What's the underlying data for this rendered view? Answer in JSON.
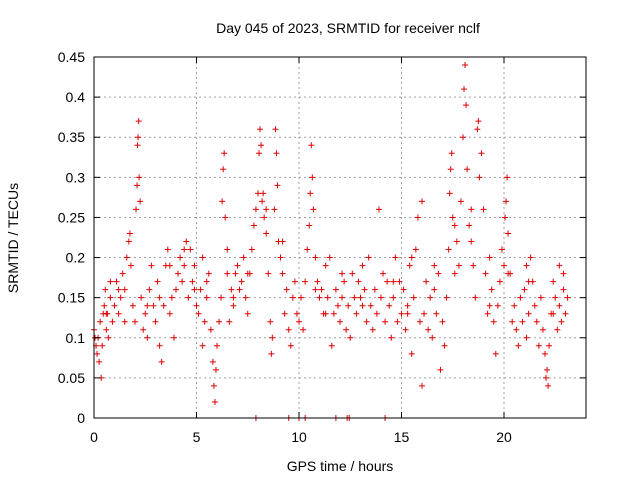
{
  "chart_data": {
    "type": "scatter",
    "title": "Day 045 of 2023, SRMTID for receiver nclf",
    "xlabel": "GPS time / hours",
    "ylabel": "SRMTID / TECUs",
    "xlim": [
      0,
      24
    ],
    "ylim": [
      0,
      0.45
    ],
    "xticks": [
      0,
      5,
      10,
      15,
      20
    ],
    "xtick_labels": [
      "0",
      "5",
      "10",
      "15",
      "20"
    ],
    "yticks": [
      0,
      0.05,
      0.1,
      0.15,
      0.2,
      0.25,
      0.3,
      0.35,
      0.4,
      0.45
    ],
    "ytick_labels": [
      "0",
      "0.05",
      "0.1",
      "0.15",
      "0.2",
      "0.25",
      "0.3",
      "0.35",
      "0.4",
      "0.45"
    ],
    "grid": true,
    "marker": "+",
    "series_color": "#e00000",
    "series": [
      {
        "name": "SRMTID",
        "points": [
          [
            0.0,
            0.11
          ],
          [
            0.05,
            0.1
          ],
          [
            0.1,
            0.09
          ],
          [
            0.15,
            0.08
          ],
          [
            0.2,
            0.1
          ],
          [
            0.25,
            0.07
          ],
          [
            0.3,
            0.12
          ],
          [
            0.35,
            0.05
          ],
          [
            0.4,
            0.09
          ],
          [
            0.45,
            0.13
          ],
          [
            0.5,
            0.14
          ],
          [
            0.55,
            0.16
          ],
          [
            0.6,
            0.11
          ],
          [
            0.65,
            0.13
          ],
          [
            0.7,
            0.1
          ],
          [
            0.8,
            0.15
          ],
          [
            0.9,
            0.12
          ],
          [
            1.0,
            0.14
          ],
          [
            1.1,
            0.17
          ],
          [
            1.2,
            0.13
          ],
          [
            1.3,
            0.15
          ],
          [
            1.4,
            0.18
          ],
          [
            1.5,
            0.16
          ],
          [
            1.6,
            0.2
          ],
          [
            1.7,
            0.22
          ],
          [
            1.75,
            0.23
          ],
          [
            1.8,
            0.19
          ],
          [
            1.9,
            0.14
          ],
          [
            2.0,
            0.12
          ],
          [
            2.05,
            0.26
          ],
          [
            2.1,
            0.29
          ],
          [
            2.12,
            0.34
          ],
          [
            2.15,
            0.35
          ],
          [
            2.18,
            0.37
          ],
          [
            2.2,
            0.3
          ],
          [
            2.25,
            0.27
          ],
          [
            2.3,
            0.15
          ],
          [
            2.4,
            0.11
          ],
          [
            2.5,
            0.13
          ],
          [
            2.6,
            0.1
          ],
          [
            2.7,
            0.16
          ],
          [
            2.8,
            0.19
          ],
          [
            2.9,
            0.14
          ],
          [
            3.0,
            0.12
          ],
          [
            3.1,
            0.17
          ],
          [
            3.2,
            0.09
          ],
          [
            3.3,
            0.07
          ],
          [
            3.4,
            0.14
          ],
          [
            3.5,
            0.19
          ],
          [
            3.6,
            0.21
          ],
          [
            3.7,
            0.13
          ],
          [
            3.8,
            0.15
          ],
          [
            3.9,
            0.1
          ],
          [
            4.0,
            0.16
          ],
          [
            4.1,
            0.18
          ],
          [
            4.2,
            0.2
          ],
          [
            4.3,
            0.17
          ],
          [
            4.4,
            0.19
          ],
          [
            4.5,
            0.22
          ],
          [
            4.6,
            0.15
          ],
          [
            4.7,
            0.21
          ],
          [
            4.8,
            0.17
          ],
          [
            4.9,
            0.19
          ],
          [
            5.0,
            0.14
          ],
          [
            5.1,
            0.13
          ],
          [
            5.2,
            0.16
          ],
          [
            5.3,
            0.2
          ],
          [
            5.4,
            0.12
          ],
          [
            5.5,
            0.15
          ],
          [
            5.6,
            0.18
          ],
          [
            5.7,
            0.11
          ],
          [
            5.8,
            0.07
          ],
          [
            5.85,
            0.04
          ],
          [
            5.9,
            0.02
          ],
          [
            5.95,
            0.06
          ],
          [
            6.0,
            0.09
          ],
          [
            6.1,
            0.12
          ],
          [
            6.2,
            0.15
          ],
          [
            6.25,
            0.27
          ],
          [
            6.3,
            0.31
          ],
          [
            6.35,
            0.33
          ],
          [
            6.4,
            0.25
          ],
          [
            6.5,
            0.18
          ],
          [
            6.6,
            0.12
          ],
          [
            6.7,
            0.16
          ],
          [
            6.8,
            0.14
          ],
          [
            6.9,
            0.18
          ],
          [
            7.0,
            0.19
          ],
          [
            7.1,
            0.16
          ],
          [
            7.2,
            0.17
          ],
          [
            7.3,
            0.2
          ],
          [
            7.4,
            0.15
          ],
          [
            7.5,
            0.13
          ],
          [
            7.6,
            0.18
          ],
          [
            7.7,
            0.21
          ],
          [
            7.8,
            0.24
          ],
          [
            7.9,
            0.26
          ],
          [
            8.0,
            0.28
          ],
          [
            8.05,
            0.33
          ],
          [
            8.1,
            0.36
          ],
          [
            8.15,
            0.34
          ],
          [
            8.2,
            0.27
          ],
          [
            8.3,
            0.25
          ],
          [
            8.4,
            0.23
          ],
          [
            8.5,
            0.18
          ],
          [
            8.6,
            0.12
          ],
          [
            8.65,
            0.08
          ],
          [
            8.7,
            0.1
          ],
          [
            8.8,
            0.26
          ],
          [
            8.85,
            0.36
          ],
          [
            8.9,
            0.33
          ],
          [
            8.95,
            0.29
          ],
          [
            9.0,
            0.22
          ],
          [
            9.1,
            0.2
          ],
          [
            9.2,
            0.18
          ],
          [
            9.3,
            0.13
          ],
          [
            9.4,
            0.16
          ],
          [
            9.5,
            0.11
          ],
          [
            9.6,
            0.09
          ],
          [
            9.7,
            0.15
          ],
          [
            9.8,
            0.17
          ],
          [
            9.9,
            0.13
          ],
          [
            10.0,
            0.12
          ],
          [
            10.1,
            0.15
          ],
          [
            10.2,
            0.11
          ],
          [
            10.3,
            0.17
          ],
          [
            10.4,
            0.21
          ],
          [
            10.5,
            0.24
          ],
          [
            10.55,
            0.28
          ],
          [
            10.6,
            0.34
          ],
          [
            10.65,
            0.3
          ],
          [
            10.7,
            0.26
          ],
          [
            10.8,
            0.2
          ],
          [
            10.9,
            0.17
          ],
          [
            11.0,
            0.15
          ],
          [
            11.1,
            0.16
          ],
          [
            11.2,
            0.13
          ],
          [
            11.3,
            0.19
          ],
          [
            11.4,
            0.15
          ],
          [
            11.5,
            0.2
          ],
          [
            11.6,
            0.09
          ],
          [
            11.7,
            0.13
          ],
          [
            11.8,
            0.16
          ],
          [
            11.9,
            0.14
          ],
          [
            12.0,
            0.12
          ],
          [
            12.1,
            0.15
          ],
          [
            12.2,
            0.17
          ],
          [
            12.3,
            0.11
          ],
          [
            12.4,
            0.14
          ],
          [
            12.5,
            0.1
          ],
          [
            12.6,
            0.18
          ],
          [
            12.7,
            0.15
          ],
          [
            12.8,
            0.13
          ],
          [
            12.9,
            0.17
          ],
          [
            13.0,
            0.15
          ],
          [
            13.1,
            0.19
          ],
          [
            13.2,
            0.16
          ],
          [
            13.3,
            0.12
          ],
          [
            13.4,
            0.2
          ],
          [
            13.5,
            0.14
          ],
          [
            13.6,
            0.11
          ],
          [
            13.7,
            0.16
          ],
          [
            13.8,
            0.13
          ],
          [
            13.9,
            0.26
          ],
          [
            14.0,
            0.15
          ],
          [
            14.1,
            0.18
          ],
          [
            14.2,
            0.12
          ],
          [
            14.3,
            0.17
          ],
          [
            14.4,
            0.14
          ],
          [
            14.5,
            0.1
          ],
          [
            14.6,
            0.15
          ],
          [
            14.7,
            0.2
          ],
          [
            14.8,
            0.12
          ],
          [
            14.9,
            0.17
          ],
          [
            15.0,
            0.13
          ],
          [
            15.1,
            0.16
          ],
          [
            15.2,
            0.11
          ],
          [
            15.3,
            0.14
          ],
          [
            15.4,
            0.19
          ],
          [
            15.5,
            0.08
          ],
          [
            15.6,
            0.15
          ],
          [
            15.7,
            0.21
          ],
          [
            15.8,
            0.25
          ],
          [
            15.9,
            0.12
          ],
          [
            16.0,
            0.04
          ],
          [
            16.1,
            0.13
          ],
          [
            16.2,
            0.17
          ],
          [
            16.3,
            0.11
          ],
          [
            16.4,
            0.15
          ],
          [
            16.5,
            0.1
          ],
          [
            16.6,
            0.16
          ],
          [
            16.7,
            0.13
          ],
          [
            16.8,
            0.18
          ],
          [
            16.9,
            0.06
          ],
          [
            17.0,
            0.12
          ],
          [
            17.1,
            0.09
          ],
          [
            17.2,
            0.15
          ],
          [
            17.3,
            0.21
          ],
          [
            17.35,
            0.28
          ],
          [
            17.4,
            0.31
          ],
          [
            17.45,
            0.33
          ],
          [
            17.5,
            0.25
          ],
          [
            17.6,
            0.18
          ],
          [
            17.7,
            0.22
          ],
          [
            17.8,
            0.19
          ],
          [
            17.9,
            0.27
          ],
          [
            18.0,
            0.35
          ],
          [
            18.05,
            0.41
          ],
          [
            18.1,
            0.44
          ],
          [
            18.15,
            0.39
          ],
          [
            18.2,
            0.31
          ],
          [
            18.3,
            0.24
          ],
          [
            18.4,
            0.22
          ],
          [
            18.5,
            0.19
          ],
          [
            18.6,
            0.15
          ],
          [
            18.7,
            0.36
          ],
          [
            18.75,
            0.37
          ],
          [
            18.8,
            0.3
          ],
          [
            18.9,
            0.33
          ],
          [
            19.0,
            0.26
          ],
          [
            19.1,
            0.18
          ],
          [
            19.2,
            0.13
          ],
          [
            19.3,
            0.2
          ],
          [
            19.4,
            0.16
          ],
          [
            19.5,
            0.12
          ],
          [
            19.6,
            0.08
          ],
          [
            19.7,
            0.14
          ],
          [
            19.8,
            0.17
          ],
          [
            19.9,
            0.21
          ],
          [
            20.0,
            0.19
          ],
          [
            20.05,
            0.25
          ],
          [
            20.1,
            0.27
          ],
          [
            20.15,
            0.3
          ],
          [
            20.2,
            0.23
          ],
          [
            20.3,
            0.18
          ],
          [
            20.4,
            0.12
          ],
          [
            20.5,
            0.14
          ],
          [
            20.6,
            0.11
          ],
          [
            20.7,
            0.09
          ],
          [
            20.8,
            0.15
          ],
          [
            20.9,
            0.12
          ],
          [
            21.0,
            0.16
          ],
          [
            21.1,
            0.1
          ],
          [
            21.2,
            0.13
          ],
          [
            21.3,
            0.2
          ],
          [
            21.4,
            0.17
          ],
          [
            21.5,
            0.14
          ],
          [
            21.6,
            0.12
          ],
          [
            21.7,
            0.09
          ],
          [
            21.8,
            0.15
          ],
          [
            21.9,
            0.11
          ],
          [
            22.0,
            0.08
          ],
          [
            22.05,
            0.05
          ],
          [
            22.1,
            0.06
          ],
          [
            22.15,
            0.04
          ],
          [
            22.2,
            0.09
          ],
          [
            22.3,
            0.13
          ],
          [
            22.4,
            0.17
          ],
          [
            22.5,
            0.15
          ],
          [
            22.6,
            0.11
          ],
          [
            22.7,
            0.14
          ],
          [
            22.8,
            0.12
          ],
          [
            22.9,
            0.16
          ],
          [
            23.0,
            0.13
          ],
          [
            23.1,
            0.15
          ],
          [
            22.7,
            0.19
          ],
          [
            22.9,
            0.18
          ],
          [
            21.2,
            0.17
          ],
          [
            16.0,
            0.27
          ],
          [
            15.5,
            0.2
          ],
          [
            7.9,
            0.0
          ],
          [
            9.5,
            0.0
          ],
          [
            10.0,
            0.0
          ],
          [
            10.3,
            0.0
          ],
          [
            11.8,
            0.0
          ],
          [
            12.35,
            0.0
          ],
          [
            12.45,
            0.0
          ],
          [
            14.2,
            0.0
          ],
          [
            0.6,
            0.13
          ],
          [
            1.2,
            0.16
          ],
          [
            2.6,
            0.14
          ],
          [
            3.7,
            0.19
          ],
          [
            4.4,
            0.21
          ],
          [
            4.9,
            0.16
          ],
          [
            5.5,
            0.17
          ],
          [
            6.8,
            0.15
          ],
          [
            7.5,
            0.18
          ],
          [
            8.25,
            0.28
          ],
          [
            8.4,
            0.26
          ],
          [
            9.2,
            0.22
          ],
          [
            10.8,
            0.16
          ],
          [
            11.3,
            0.13
          ],
          [
            12.1,
            0.18
          ],
          [
            13.1,
            0.14
          ],
          [
            14.6,
            0.17
          ],
          [
            15.3,
            0.13
          ],
          [
            16.6,
            0.19
          ],
          [
            17.6,
            0.24
          ],
          [
            18.4,
            0.26
          ],
          [
            19.3,
            0.14
          ],
          [
            20.2,
            0.18
          ],
          [
            21.1,
            0.19
          ],
          [
            22.4,
            0.13
          ],
          [
            6.5,
            0.21
          ],
          [
            5.3,
            0.09
          ],
          [
            3.2,
            0.15
          ],
          [
            1.5,
            0.12
          ],
          [
            0.8,
            0.17
          ]
        ]
      }
    ]
  }
}
